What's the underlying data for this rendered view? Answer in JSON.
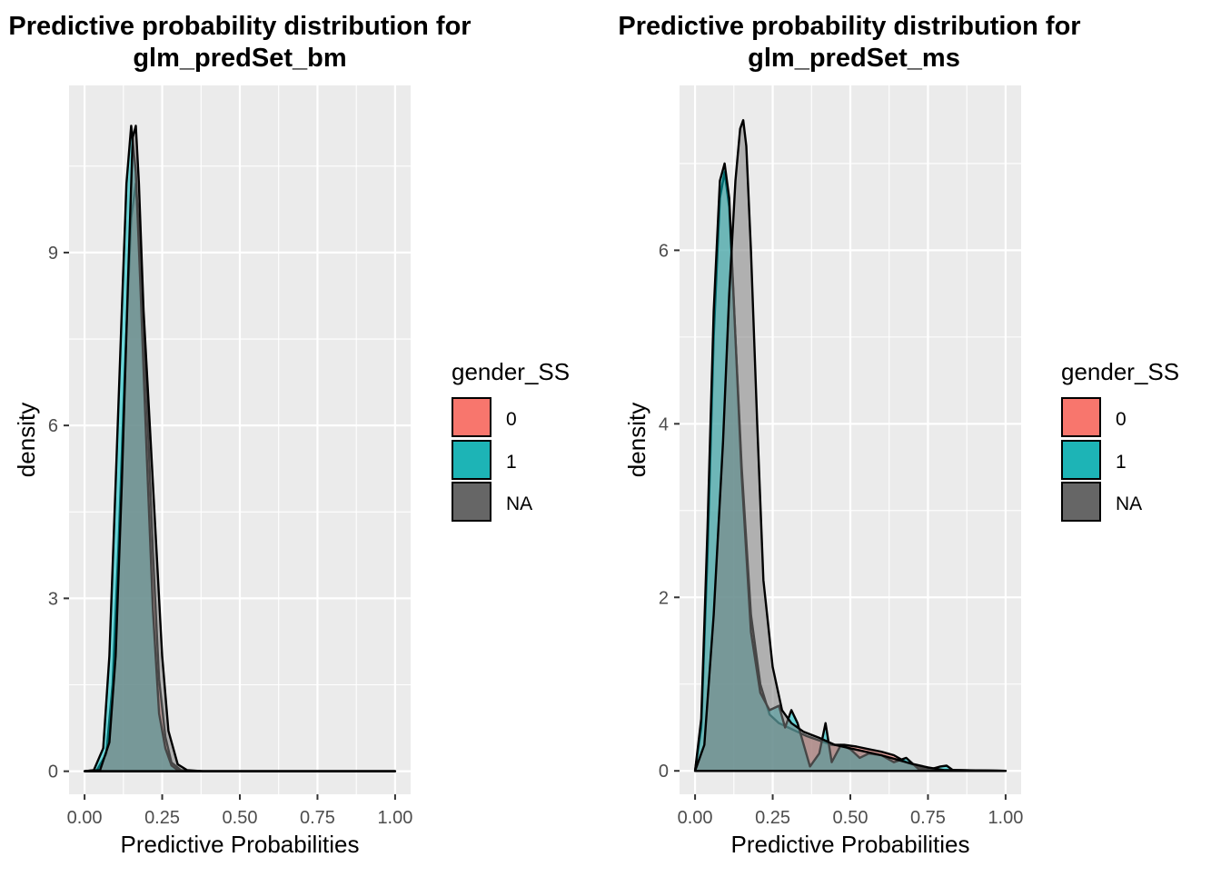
{
  "chart_data": [
    {
      "type": "area",
      "title": [
        "Predictive probability distribution for",
        "glm_predSet_bm"
      ],
      "xlabel": "Predictive Probabilities",
      "ylabel": "density",
      "xlim": [
        -0.05,
        1.05
      ],
      "ylim": [
        -0.4,
        11.9
      ],
      "xticks": [
        0,
        0.25,
        0.5,
        0.75,
        1.0
      ],
      "xtick_labels": [
        "0.00",
        "0.25",
        "0.50",
        "0.75",
        "1.00"
      ],
      "yticks": [
        0,
        3,
        6,
        9
      ],
      "ytick_labels": [
        "0",
        "3",
        "6",
        "9"
      ],
      "grid": true,
      "legend": {
        "title": "gender_SS",
        "position": "right",
        "entries": [
          {
            "label": "0",
            "color": "#F8766D"
          },
          {
            "label": "1",
            "color": "#00BFC4"
          },
          {
            "label": "NA",
            "color": "#7F7F7F"
          }
        ]
      },
      "series": [
        {
          "name": "0",
          "color": "#F8766D",
          "x": [
            0.0,
            0.04,
            0.07,
            0.09,
            0.11,
            0.13,
            0.15,
            0.165,
            0.18,
            0.2,
            0.22,
            0.24,
            0.26,
            0.28,
            0.31,
            0.35,
            0.4,
            1.0
          ],
          "y": [
            0,
            0.02,
            0.3,
            1.5,
            4.0,
            7.0,
            9.6,
            10.2,
            9.0,
            6.5,
            3.8,
            1.6,
            0.6,
            0.15,
            0.02,
            0,
            0,
            0
          ]
        },
        {
          "name": "1",
          "color": "#00BFC4",
          "x": [
            0.0,
            0.03,
            0.06,
            0.08,
            0.1,
            0.12,
            0.135,
            0.15,
            0.165,
            0.18,
            0.2,
            0.22,
            0.24,
            0.26,
            0.28,
            0.3,
            0.34,
            0.4,
            1.0
          ],
          "y": [
            0,
            0.02,
            0.4,
            2.0,
            5.0,
            8.0,
            10.2,
            11.2,
            10.4,
            8.4,
            5.5,
            2.8,
            1.0,
            0.4,
            0.1,
            0.02,
            0,
            0,
            0
          ]
        },
        {
          "name": "NA",
          "color": "#7F7F7F",
          "x": [
            0.0,
            0.05,
            0.08,
            0.1,
            0.12,
            0.14,
            0.155,
            0.165,
            0.175,
            0.19,
            0.21,
            0.23,
            0.25,
            0.27,
            0.3,
            0.33,
            0.38,
            1.0
          ],
          "y": [
            0,
            0.02,
            0.5,
            2.0,
            5.0,
            8.5,
            11.0,
            11.2,
            10.2,
            8.0,
            6.0,
            4.0,
            2.0,
            0.7,
            0.12,
            0.02,
            0,
            0
          ]
        }
      ]
    },
    {
      "type": "area",
      "title": [
        "Predictive probability distribution for",
        "glm_predSet_ms"
      ],
      "xlabel": "Predictive Probabilities",
      "ylabel": "density",
      "xlim": [
        -0.05,
        1.05
      ],
      "ylim": [
        -0.27,
        7.9
      ],
      "xticks": [
        0,
        0.25,
        0.5,
        0.75,
        1.0
      ],
      "xtick_labels": [
        "0.00",
        "0.25",
        "0.50",
        "0.75",
        "1.00"
      ],
      "yticks": [
        0,
        2,
        4,
        6
      ],
      "ytick_labels": [
        "0",
        "2",
        "4",
        "6"
      ],
      "grid": true,
      "legend": {
        "title": "gender_SS",
        "position": "right",
        "entries": [
          {
            "label": "0",
            "color": "#F8766D"
          },
          {
            "label": "1",
            "color": "#00BFC4"
          },
          {
            "label": "NA",
            "color": "#7F7F7F"
          }
        ]
      },
      "series": [
        {
          "name": "0",
          "color": "#F8766D",
          "x": [
            0.0,
            0.02,
            0.04,
            0.06,
            0.08,
            0.095,
            0.11,
            0.13,
            0.15,
            0.18,
            0.21,
            0.24,
            0.27,
            0.3,
            0.33,
            0.36,
            0.4,
            0.44,
            0.48,
            0.52,
            0.56,
            0.6,
            0.64,
            0.68,
            0.72,
            0.76,
            0.8,
            1.0
          ],
          "y": [
            0,
            0.5,
            2.5,
            5.0,
            6.6,
            6.9,
            6.5,
            5.0,
            3.5,
            1.8,
            1.0,
            0.65,
            0.55,
            0.5,
            0.45,
            0.4,
            0.35,
            0.3,
            0.3,
            0.28,
            0.25,
            0.22,
            0.18,
            0.1,
            0.05,
            0.02,
            0.01,
            0
          ]
        },
        {
          "name": "1",
          "color": "#00BFC4",
          "x": [
            0.0,
            0.02,
            0.04,
            0.06,
            0.08,
            0.095,
            0.11,
            0.13,
            0.15,
            0.18,
            0.21,
            0.24,
            0.27,
            0.29,
            0.31,
            0.33,
            0.35,
            0.37,
            0.4,
            0.42,
            0.44,
            0.47,
            0.5,
            0.53,
            0.56,
            0.6,
            0.64,
            0.68,
            0.72,
            0.76,
            0.79,
            0.81,
            0.83,
            1.0
          ],
          "y": [
            0,
            0.6,
            2.8,
            5.3,
            6.8,
            7.0,
            6.6,
            5.0,
            3.4,
            1.6,
            0.9,
            0.7,
            0.75,
            0.5,
            0.7,
            0.55,
            0.3,
            0.05,
            0.2,
            0.55,
            0.1,
            0.3,
            0.25,
            0.15,
            0.2,
            0.18,
            0.1,
            0.15,
            0.02,
            0.02,
            0.05,
            0.06,
            0.01,
            0
          ]
        },
        {
          "name": "NA",
          "color": "#7F7F7F",
          "x": [
            0.0,
            0.03,
            0.06,
            0.09,
            0.11,
            0.13,
            0.145,
            0.155,
            0.165,
            0.18,
            0.2,
            0.22,
            0.25,
            0.28,
            0.31,
            0.35,
            0.4,
            0.45,
            0.5,
            0.55,
            0.6,
            0.65,
            0.7,
            0.75,
            0.8,
            1.0
          ],
          "y": [
            0,
            0.3,
            1.8,
            3.8,
            5.5,
            6.8,
            7.4,
            7.5,
            7.2,
            6.0,
            4.0,
            2.2,
            1.2,
            0.7,
            0.55,
            0.45,
            0.38,
            0.3,
            0.26,
            0.22,
            0.18,
            0.13,
            0.08,
            0.04,
            0.01,
            0
          ]
        }
      ]
    }
  ]
}
